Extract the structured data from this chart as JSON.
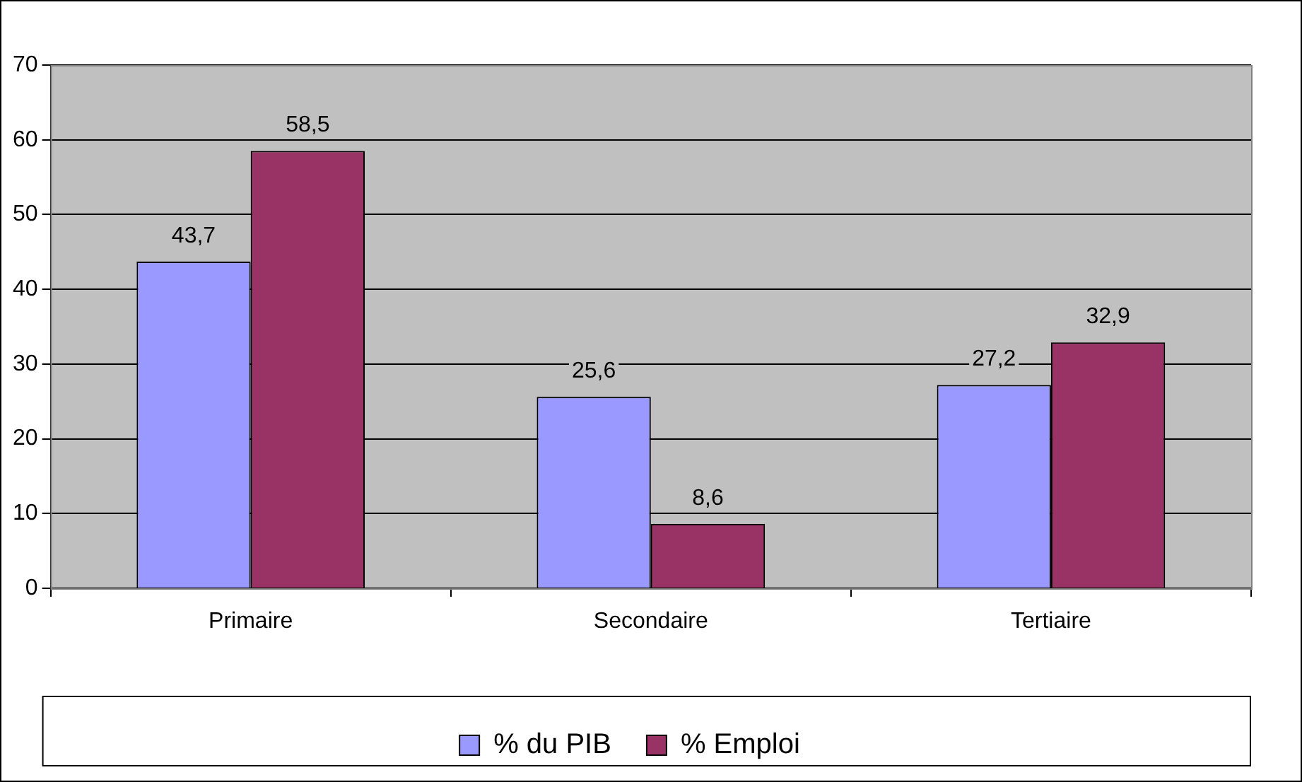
{
  "chart_data": {
    "type": "bar",
    "categories": [
      "Primaire",
      "Secondaire",
      "Tertiaire"
    ],
    "series": [
      {
        "name": "% du PIB",
        "color": "#9999ff",
        "values": [
          43.7,
          25.6,
          27.2
        ],
        "value_labels": [
          "43,7",
          "25,6",
          "27,2"
        ]
      },
      {
        "name": "% Emploi",
        "color": "#993366",
        "values": [
          58.5,
          8.6,
          32.9
        ],
        "value_labels": [
          "58,5",
          "8,6",
          "32,9"
        ]
      }
    ],
    "ylim": [
      0,
      70
    ],
    "yticks": [
      0,
      10,
      20,
      30,
      40,
      50,
      60,
      70
    ],
    "grid": "y",
    "legend": "bottom"
  }
}
